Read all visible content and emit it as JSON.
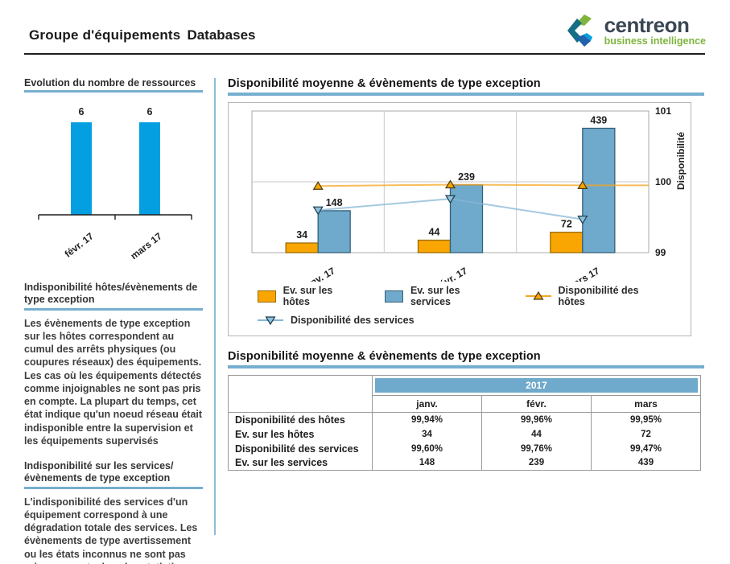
{
  "header": {
    "title_prefix": "Groupe d'équipements",
    "title_emphasis": "Databases",
    "logo": {
      "brand": "centreon",
      "tagline": "business intelligence"
    }
  },
  "colors": {
    "bright_blue": "#049fe0",
    "steel_blue": "#6fa9cb",
    "steel_blue_border": "#33617a",
    "orange": "#f9a602",
    "orange_border": "#9c6b00",
    "rule_blue": "#76aecf",
    "divider_blue": "#8fbbd7",
    "grid": "#c9c9c9",
    "plot_border": "#a9a9a9",
    "host_line": "#f5a623",
    "service_line": "#85b7d6",
    "logo_green": "#7fb53e",
    "logo_teal": "#156e83",
    "logo_blue": "#1e63ac",
    "logo_navy": "#3a4654"
  },
  "sidebar": {
    "resource_chart_title": "Evolution du nombre de ressources",
    "sections": [
      {
        "heading": "Indisponibilité  hôtes/évènements de type exception",
        "body": "Les évènements de type exception sur les hôtes correspondent au cumul des arrêts physiques (ou coupures réseaux) des équipements. Les cas où les équipements détectés comme injoignables ne sont pas pris en compte. La plupart du temps, cet état indique qu'un noeud réseau était indisponible entre la supervision et les équipements supervisés"
      },
      {
        "heading": "Indisponibilité sur les services/ évènements de type exception",
        "body": "L'indisponibilité des services d'un équipement correspond à une dégradation totale des services. Les évènements de type avertissement ou les états inconnus ne sont pas pris en compte dans les statistiques de disponibilité."
      }
    ]
  },
  "main": {
    "chart_section_title": "Disponibilité moyenne & évènements de type exception",
    "table_section_title": "Disponibilité moyenne & évènements de type exception",
    "table": {
      "year_header": "2017",
      "columns": [
        "janv.",
        "févr.",
        "mars"
      ],
      "rows": [
        {
          "label": "Disponibilité des hôtes",
          "values": [
            "99,94%",
            "99,96%",
            "99,95%"
          ]
        },
        {
          "label": "Ev. sur les hôtes",
          "values": [
            "34",
            "44",
            "72"
          ]
        },
        {
          "label": "Disponibilité des services",
          "values": [
            "99,60%",
            "99,76%",
            "99,47%"
          ]
        },
        {
          "label": "Ev. sur les services",
          "values": [
            "148",
            "239",
            "439"
          ]
        }
      ]
    }
  },
  "chart_data": [
    {
      "id": "resource-evolution",
      "type": "bar",
      "title": "Evolution du nombre de ressources",
      "categories": [
        "févr. 17",
        "mars 17"
      ],
      "values": [
        6,
        6
      ],
      "ylim": [
        0,
        7
      ],
      "bar_color": "#049fe0",
      "grid": false,
      "legend_position": "none"
    },
    {
      "id": "availability-exceptions",
      "type": "combo-bar-line",
      "title": "Disponibilité moyenne & évènements de type exception",
      "categories": [
        "janv. 17",
        "févr. 17",
        "mars 17"
      ],
      "bar_axis_max": 500,
      "bar_series": [
        {
          "name": "Ev. sur les hôtes",
          "values": [
            34,
            44,
            72
          ],
          "color": "#f9a602",
          "border": "#9c6b00"
        },
        {
          "name": "Ev. sur les services",
          "values": [
            148,
            239,
            439
          ],
          "color": "#6fa9cb",
          "border": "#33617a"
        }
      ],
      "line_series": [
        {
          "name": "Disponibilité des hôtes",
          "values": [
            99.94,
            99.96,
            99.95
          ],
          "color": "#f5a623",
          "marker": "triangle-up",
          "marker_fill": "#f9a602",
          "marker_stroke": "#4a3b10",
          "extend_right": true
        },
        {
          "name": "Disponibilité des services",
          "values": [
            99.6,
            99.76,
            99.47
          ],
          "color": "#85b7d6",
          "marker": "triangle-down",
          "marker_fill": "#8fc0dc",
          "marker_stroke": "#1d3d4d",
          "extend_right": false
        }
      ],
      "y2_axis": {
        "label": "Disponibilité",
        "min": 99,
        "max": 101,
        "ticks": [
          99,
          100,
          101
        ]
      },
      "grid": true,
      "legend_position": "bottom"
    }
  ]
}
